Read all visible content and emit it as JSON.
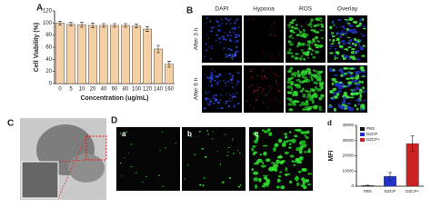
{
  "chart_data": [
    {
      "type": "bar",
      "ylabel": "Cell Viability (%)",
      "xlabel": "Concentration (ug/mL)",
      "categories": [
        "0",
        "5",
        "10",
        "20",
        "40",
        "60",
        "80",
        "100",
        "120",
        "140",
        "160"
      ],
      "values": [
        100,
        98,
        97,
        96,
        96,
        96,
        96,
        95,
        90,
        57,
        32
      ],
      "errors": [
        3,
        3,
        4,
        4,
        3,
        3,
        3,
        3,
        4,
        6,
        5
      ],
      "color": "#f5cfa6",
      "ylim": [
        0,
        120
      ],
      "yticks": [
        0,
        20,
        40,
        60,
        80,
        100,
        120
      ]
    },
    {
      "type": "bar",
      "ylabel": "MFI",
      "categories": [
        "PBS",
        "DZCP",
        "DZCP+"
      ],
      "values": [
        400,
        6500,
        28000
      ],
      "errors": [
        300,
        2500,
        5000
      ],
      "colors": [
        "#111111",
        "#2233cc",
        "#cc2222"
      ],
      "ylim": [
        0,
        40000
      ],
      "yticks": [
        0,
        10000,
        20000,
        30000,
        40000
      ]
    }
  ],
  "panels": {
    "A": "A",
    "B": "B",
    "C": "C",
    "D": "D"
  },
  "fluorescence": {
    "headers": [
      "DAPI",
      "Hypoxia",
      "ROS",
      "Overlay"
    ],
    "rows": [
      "After 3 h",
      "After 6 h"
    ]
  },
  "subpanels": [
    "a",
    "b",
    "c",
    "d"
  ]
}
